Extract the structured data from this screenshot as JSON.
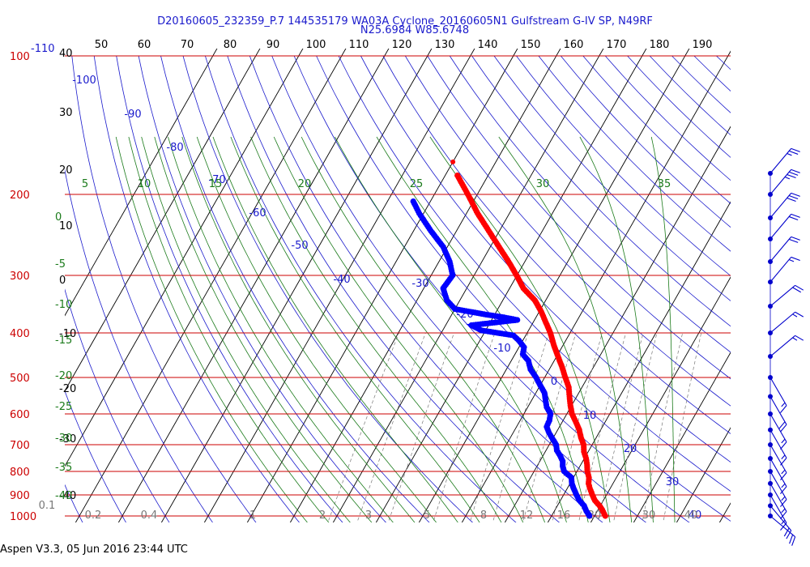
{
  "header": {
    "title_line1": "D20160605_232359_P.7 144535179 WA03A Cyclone_20160605N1 Gulfstream G-IV SP, N49RF",
    "title_line2": "N25.6984 W85.6748"
  },
  "footer": {
    "version_stamp": "Aspen V3.3, 05 Jun 2016  23:44 UTC"
  },
  "colors": {
    "isobar": "#cc0000",
    "isotherm": "#000000",
    "dry_adiabat": "#1a1acc",
    "moist_adiabat": "#1a7a1a",
    "mixing_ratio": "#777777",
    "temperature_trace": "#ff0000",
    "dewpoint_trace": "#0000ff",
    "wind_marker": "#0000cc",
    "title_text": "#1a1acc"
  },
  "chart_data": {
    "type": "skew-t log-p sounding",
    "y_axis": {
      "quantity": "pressure",
      "scale": "log",
      "range": [
        1000,
        100
      ],
      "tick_labels": [
        "100",
        "200",
        "300",
        "400",
        "500",
        "600",
        "700",
        "800",
        "900",
        "1000"
      ]
    },
    "isotherm_labels": [
      "40",
      "30",
      "20",
      "10",
      "0",
      "-10",
      "-20",
      "-30",
      "-40"
    ],
    "top_axis_labels": [
      "50",
      "60",
      "70",
      "80",
      "90",
      "100",
      "110",
      "120",
      "130",
      "140",
      "150",
      "160",
      "170",
      "180",
      "190"
    ],
    "top_left_labels": [
      "-110"
    ],
    "dry_adiabat_labels": [
      "-100",
      "-90",
      "-80",
      "-70",
      "-60",
      "-50",
      "-40",
      "-30",
      "-20",
      "-10",
      "0",
      "10",
      "20",
      "30",
      "40"
    ],
    "moist_adiabat_labels": {
      "right": [
        "5",
        "10",
        "15",
        "20",
        "25",
        "30",
        "35"
      ],
      "left": [
        "0",
        "-5",
        "-10",
        "-15",
        "-20",
        "-25",
        "-30",
        "-35",
        "-40"
      ]
    },
    "mixing_ratio_labels": [
      "0.1",
      "0.2",
      "0.4",
      "1",
      "2",
      "3",
      "5",
      "8",
      "12",
      "16",
      "20",
      "30",
      "40"
    ],
    "series": [
      {
        "kind": "temperature",
        "points": [
          [
            1000,
            22.5
          ],
          [
            970,
            21.0
          ],
          [
            950,
            19.8
          ],
          [
            925,
            18.0
          ],
          [
            900,
            16.7
          ],
          [
            870,
            15.2
          ],
          [
            850,
            14.3
          ],
          [
            825,
            13.6
          ],
          [
            800,
            12.4
          ],
          [
            775,
            11.5
          ],
          [
            750,
            10.4
          ],
          [
            725,
            9.0
          ],
          [
            700,
            8.0
          ],
          [
            675,
            6.4
          ],
          [
            650,
            5.0
          ],
          [
            625,
            3.2
          ],
          [
            600,
            1.2
          ],
          [
            575,
            -0.3
          ],
          [
            550,
            -1.7
          ],
          [
            525,
            -3.1
          ],
          [
            500,
            -5.2
          ],
          [
            475,
            -7.3
          ],
          [
            450,
            -9.7
          ],
          [
            425,
            -12.2
          ],
          [
            400,
            -14.6
          ],
          [
            380,
            -17.0
          ],
          [
            360,
            -19.5
          ],
          [
            340,
            -22.5
          ],
          [
            320,
            -26.8
          ],
          [
            300,
            -30.1
          ],
          [
            280,
            -33.8
          ],
          [
            260,
            -38.0
          ],
          [
            240,
            -42.5
          ],
          [
            220,
            -47.4
          ],
          [
            200,
            -52.2
          ],
          [
            180,
            -57.7
          ]
        ]
      },
      {
        "kind": "dewpoint",
        "points": [
          [
            1000,
            18.8
          ],
          [
            975,
            17.4
          ],
          [
            950,
            16.2
          ],
          [
            925,
            14.4
          ],
          [
            900,
            13.0
          ],
          [
            870,
            11.4
          ],
          [
            850,
            10.4
          ],
          [
            825,
            9.5
          ],
          [
            800,
            7.0
          ],
          [
            780,
            6.0
          ],
          [
            760,
            5.3
          ],
          [
            740,
            4.0
          ],
          [
            720,
            2.5
          ],
          [
            700,
            1.6
          ],
          [
            680,
            0.0
          ],
          [
            660,
            -1.6
          ],
          [
            640,
            -3.0
          ],
          [
            620,
            -3.2
          ],
          [
            600,
            -3.8
          ],
          [
            580,
            -5.6
          ],
          [
            560,
            -6.8
          ],
          [
            540,
            -8.0
          ],
          [
            520,
            -10.0
          ],
          [
            500,
            -12.0
          ],
          [
            480,
            -14.4
          ],
          [
            460,
            -16.0
          ],
          [
            445,
            -18.2
          ],
          [
            430,
            -18.8
          ],
          [
            415,
            -21.0
          ],
          [
            405,
            -22.9
          ],
          [
            395,
            -31.0
          ],
          [
            385,
            -34.0
          ],
          [
            375,
            -24.0
          ],
          [
            370,
            -27.5
          ],
          [
            365,
            -32.0
          ],
          [
            355,
            -40.0
          ],
          [
            340,
            -43.0
          ],
          [
            320,
            -45.5
          ],
          [
            300,
            -45.0
          ],
          [
            280,
            -47.5
          ],
          [
            260,
            -51.0
          ],
          [
            240,
            -56.0
          ],
          [
            220,
            -61.0
          ],
          [
            205,
            -64.5
          ]
        ]
      }
    ],
    "isolated_point": [
      170,
      -60.0
    ],
    "wind_profile": [
      {
        "p": 1000,
        "speed_kt": 20,
        "dir_deg": 130
      },
      {
        "p": 950,
        "speed_kt": 20,
        "dir_deg": 140
      },
      {
        "p": 900,
        "speed_kt": 15,
        "dir_deg": 150
      },
      {
        "p": 850,
        "speed_kt": 15,
        "dir_deg": 150
      },
      {
        "p": 800,
        "speed_kt": 15,
        "dir_deg": 150
      },
      {
        "p": 750,
        "speed_kt": 15,
        "dir_deg": 150
      },
      {
        "p": 700,
        "speed_kt": 15,
        "dir_deg": 150
      },
      {
        "p": 650,
        "speed_kt": 15,
        "dir_deg": 150
      },
      {
        "p": 600,
        "speed_kt": 15,
        "dir_deg": 150
      },
      {
        "p": 550,
        "speed_kt": 20,
        "dir_deg": 150
      },
      {
        "p": 500,
        "speed_kt": 15,
        "dir_deg": 150
      },
      {
        "p": 450,
        "speed_kt": 15,
        "dir_deg": 50
      },
      {
        "p": 400,
        "speed_kt": 15,
        "dir_deg": 50
      },
      {
        "p": 350,
        "speed_kt": 20,
        "dir_deg": 50
      },
      {
        "p": 310,
        "speed_kt": 15,
        "dir_deg": 40
      },
      {
        "p": 280,
        "speed_kt": 20,
        "dir_deg": 40
      },
      {
        "p": 250,
        "speed_kt": 20,
        "dir_deg": 40
      },
      {
        "p": 225,
        "speed_kt": 30,
        "dir_deg": 40
      },
      {
        "p": 200,
        "speed_kt": 35,
        "dir_deg": 40
      },
      {
        "p": 180,
        "speed_kt": 25,
        "dir_deg": 40
      }
    ]
  }
}
